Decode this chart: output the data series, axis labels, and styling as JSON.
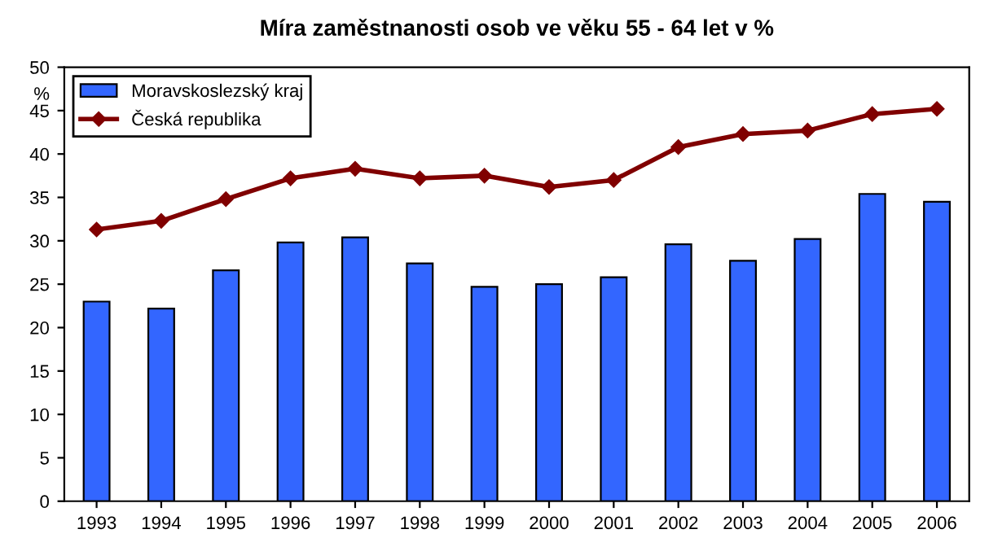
{
  "chart_data": {
    "type": "bar",
    "title": "Míra zaměstnanosti osob ve věku 55 - 64 let v %",
    "ylabel": "%",
    "categories": [
      "1993",
      "1994",
      "1995",
      "1996",
      "1997",
      "1998",
      "1999",
      "2000",
      "2001",
      "2002",
      "2003",
      "2004",
      "2005",
      "2006"
    ],
    "series": [
      {
        "name": "Moravskoslezský kraj",
        "color": "#3366ff",
        "values": [
          23.0,
          22.2,
          26.6,
          29.8,
          30.4,
          27.4,
          24.7,
          25.0,
          25.8,
          29.6,
          27.7,
          30.2,
          35.4,
          34.5
        ]
      },
      {
        "name": "Česká republika",
        "type": "line",
        "color": "#800000",
        "marker": "diamond",
        "values": [
          31.3,
          32.3,
          34.8,
          37.2,
          38.3,
          37.2,
          37.5,
          36.2,
          37.0,
          40.8,
          42.3,
          42.7,
          44.6,
          45.2
        ]
      }
    ],
    "ylim": [
      0,
      50
    ],
    "yticks": [
      0,
      5,
      10,
      15,
      20,
      25,
      30,
      35,
      40,
      45,
      50
    ],
    "grid": false,
    "legend": "top left"
  }
}
